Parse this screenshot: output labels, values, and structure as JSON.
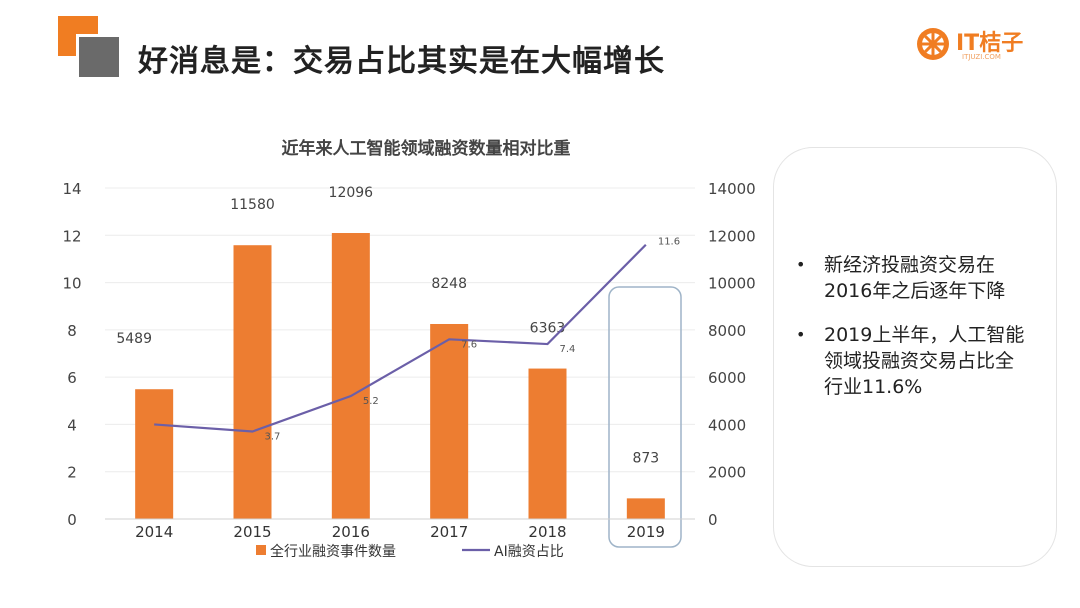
{
  "slide": {
    "title": "好消息是：交易占比其实是在大幅增长",
    "logo_text": "IT桔子",
    "logo_sub": "ITJUZI.COM"
  },
  "notes": [
    "新经济投融资交易在2016年之后逐年下降",
    "2019上半年，人工智能领域投融资交易占比全行业11.6%"
  ],
  "chart_data": {
    "type": "bar",
    "title": "近年来人工智能领域融资数量相对比重",
    "categories": [
      "2014",
      "2015",
      "2016",
      "2017",
      "2018",
      "2019"
    ],
    "series": [
      {
        "name": "全行业融资事件数量",
        "type": "bar",
        "axis": "right",
        "values": [
          5489,
          11580,
          12096,
          8248,
          6363,
          873
        ],
        "labels": [
          "5489",
          "11580",
          "12096",
          "8248",
          "6363",
          "873"
        ],
        "color": "#ed7d31"
      },
      {
        "name": "AI融资占比",
        "type": "line",
        "axis": "left",
        "values": [
          4.0,
          3.7,
          5.2,
          7.6,
          7.4,
          11.6
        ],
        "labels": [
          "",
          "3.7",
          "5.2",
          "7.6",
          "7.4",
          "11.6"
        ],
        "color": "#6b5fa8"
      }
    ],
    "y_left": {
      "min": 0,
      "max": 14,
      "ticks": [
        "0",
        "2",
        "4",
        "6",
        "8",
        "10",
        "12",
        "14"
      ]
    },
    "y_right": {
      "min": 0,
      "max": 14000,
      "ticks": [
        "0",
        "2000",
        "4000",
        "6000",
        "8000",
        "10000",
        "12000",
        "14000"
      ]
    },
    "grid": true,
    "legend": "bottom",
    "highlight_category": "2019",
    "accent_color": "#ed7d31"
  }
}
